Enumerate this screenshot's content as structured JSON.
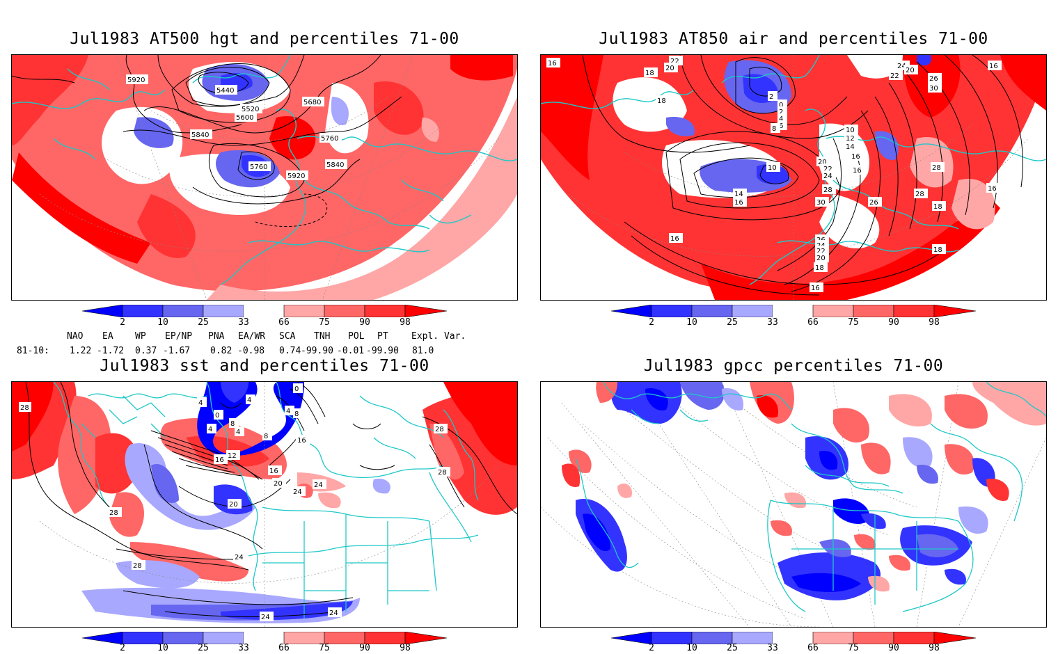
{
  "panels": [
    {
      "id": "p1",
      "title": "Jul1983 AT500 hgt and percentiles 71-00",
      "contour_labels": [
        "5920",
        "5440",
        "5520",
        "5600",
        "5680",
        "5840",
        "5760",
        "5760",
        "5840",
        "5920"
      ]
    },
    {
      "id": "p2",
      "title": "Jul1983 AT850 air and percentiles 71-00",
      "contour_labels": [
        "16",
        "22",
        "20",
        "18",
        "18",
        "2",
        "0",
        "2",
        "4",
        "6",
        "8",
        "10",
        "12",
        "14",
        "16",
        "20",
        "22",
        "24",
        "28",
        "30",
        "26",
        "16",
        "28",
        "26",
        "24",
        "22",
        "20",
        "18",
        "16",
        "16",
        "24",
        "22",
        "20",
        "26",
        "30",
        "28",
        "18",
        "16",
        "16",
        "18",
        "10",
        "14",
        "16"
      ]
    },
    {
      "id": "p3",
      "title": "Jul1983 sst and percentiles 71-00",
      "contour_labels": [
        "28",
        "4",
        "0",
        "4",
        "8",
        "4",
        "4",
        "8",
        "0",
        "8",
        "4",
        "16",
        "12",
        "16",
        "20",
        "20",
        "16",
        "24",
        "28",
        "28",
        "28",
        "24",
        "24",
        "24",
        "24",
        "28"
      ]
    },
    {
      "id": "p4",
      "title": "Jul1983 gpcc percentiles 71-00",
      "contour_labels": []
    }
  ],
  "colorbar": {
    "labels": [
      "2",
      "10",
      "25",
      "33",
      "66",
      "75",
      "90",
      "98"
    ],
    "colors": {
      "c1": "#0000ff",
      "c2": "#3333ff",
      "c3": "#6666f0",
      "c4": "#a8a8ff",
      "c5": "#ffffff",
      "c6": "#ffa6a6",
      "c7": "#ff6666",
      "c8": "#ff3333",
      "c9": "#ff0000"
    }
  },
  "indices": {
    "headers": [
      "NAO",
      "EA",
      "WP",
      "EP/NP",
      "PNA",
      "EA/WR",
      "SCA",
      "TNH",
      "POL",
      "PT",
      "Expl. Var."
    ],
    "row_label": "81-10:",
    "values": [
      "1.22",
      "-1.72",
      "0.37",
      "-1.67",
      "0.82",
      "-0.98",
      "0.74",
      "-99.90",
      "-0.01",
      "-99.90",
      "81.0"
    ]
  },
  "colors": {
    "coast": "#1ec8c8",
    "contour": "#000000",
    "strong_red": "#ff0000",
    "red": "#ff6666",
    "pink": "#ffa6a6",
    "blue": "#3333ff",
    "lightblue": "#a8a8ff",
    "deep_blue": "#0000ff"
  }
}
